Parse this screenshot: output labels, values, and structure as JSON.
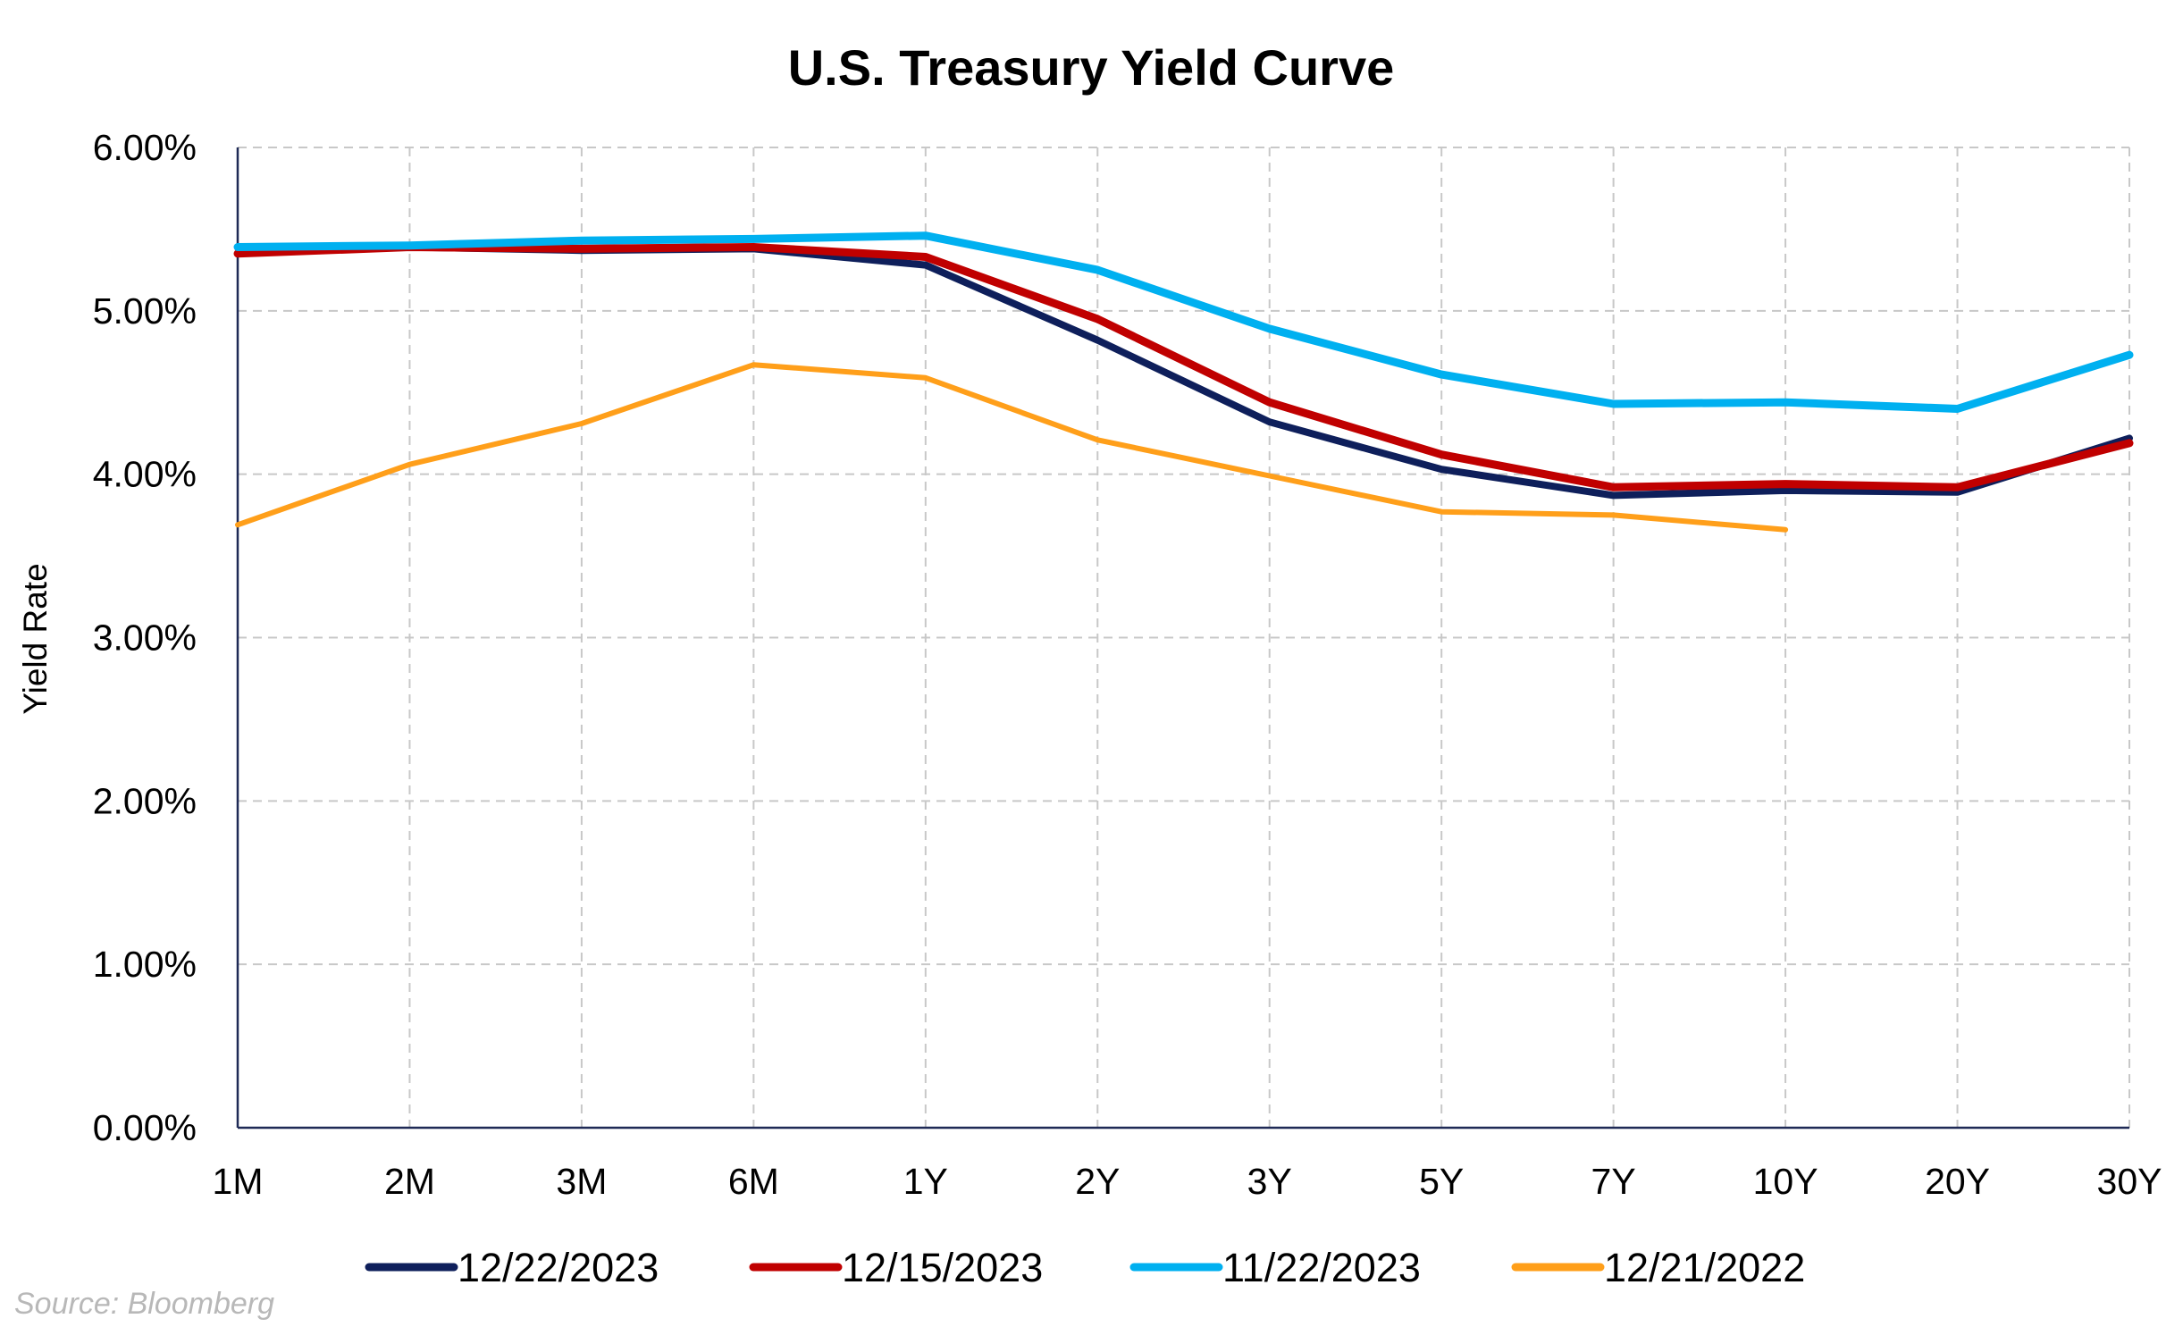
{
  "chart_data": {
    "type": "line",
    "title": "U.S. Treasury Yield Curve",
    "ylabel": "Yield Rate",
    "xlabel": "",
    "categories": [
      "1M",
      "2M",
      "3M",
      "6M",
      "1Y",
      "2Y",
      "3Y",
      "5Y",
      "7Y",
      "10Y",
      "20Y",
      "30Y"
    ],
    "ylim": [
      0,
      6
    ],
    "yticks": [
      0,
      1,
      2,
      3,
      4,
      5,
      6
    ],
    "ytick_labels": [
      "0.00%",
      "1.00%",
      "2.00%",
      "3.00%",
      "4.00%",
      "5.00%",
      "6.00%"
    ],
    "grid": true,
    "legend_position": "bottom",
    "series": [
      {
        "name": "12/22/2023",
        "color": "#0e1f5b",
        "values": [
          5.35,
          5.39,
          5.37,
          5.38,
          5.28,
          4.82,
          4.32,
          4.03,
          3.87,
          3.9,
          3.89,
          4.22
        ]
      },
      {
        "name": "12/15/2023",
        "color": "#c00000",
        "values": [
          5.35,
          5.39,
          5.38,
          5.39,
          5.33,
          4.95,
          4.44,
          4.12,
          3.92,
          3.94,
          3.92,
          4.19
        ]
      },
      {
        "name": "11/22/2023",
        "color": "#00b0f0",
        "values": [
          5.39,
          5.4,
          5.43,
          5.44,
          5.46,
          5.25,
          4.89,
          4.61,
          4.43,
          4.44,
          4.4,
          4.73
        ]
      },
      {
        "name": "12/21/2022",
        "color": "#ff9f1a",
        "values": [
          3.69,
          4.06,
          4.31,
          4.67,
          4.59,
          4.21,
          3.99,
          3.77,
          3.75,
          3.66,
          null,
          null
        ]
      }
    ],
    "source": "Source: Bloomberg"
  }
}
